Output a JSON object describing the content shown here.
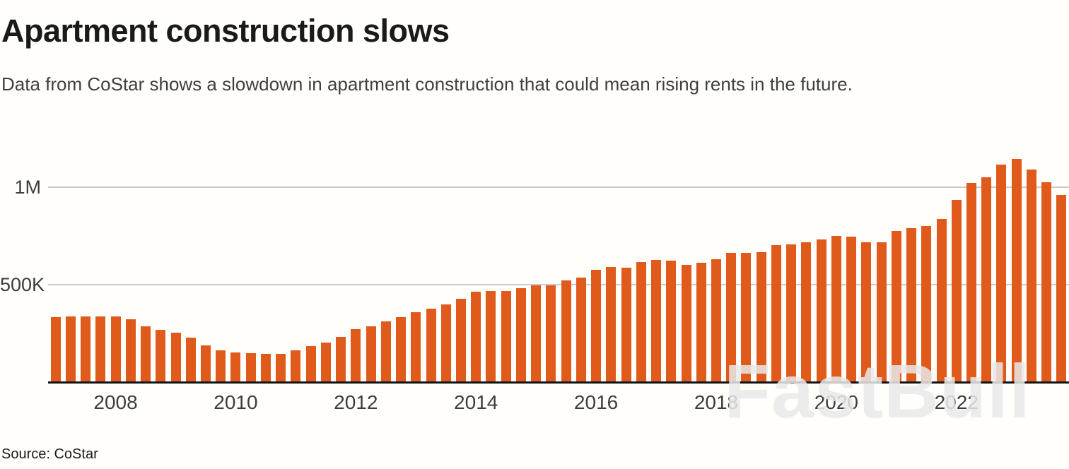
{
  "header": {
    "title": "Apartment construction slows",
    "subtitle": "Data from CoStar shows a slowdown in apartment construction that could mean rising rents in the future."
  },
  "watermark": "FastBull",
  "source_line": "Source: CoStar",
  "colors": {
    "bar": "#E05A1C",
    "gridline": "#cbcbcb",
    "axis_line": "#151515",
    "title_text": "#1a1a1a",
    "subtitle_text": "#3f3f3f",
    "tick_text": "#3d3d3d",
    "watermark_text": "rgba(233,233,233,0.85)",
    "background": "#fffefb"
  },
  "chart_data": {
    "type": "bar",
    "title": "Apartment construction slows",
    "xlabel": "",
    "ylabel": "",
    "grid": "horizontal-only",
    "legend": "none",
    "ylim": [
      0,
      1250000
    ],
    "y_ticks": [
      {
        "label": "500K",
        "value": 500000
      },
      {
        "label": "1M",
        "value": 1000000
      }
    ],
    "x_ticks": [
      {
        "label": "2008",
        "year": 2008
      },
      {
        "label": "2010",
        "year": 2010
      },
      {
        "label": "2012",
        "year": 2012
      },
      {
        "label": "2014",
        "year": 2014
      },
      {
        "label": "2016",
        "year": 2016
      },
      {
        "label": "2018",
        "year": 2018
      },
      {
        "label": "2020",
        "year": 2020
      },
      {
        "label": "2022",
        "year": 2022
      }
    ],
    "categories": [
      "2007 Q1",
      "2007 Q2",
      "2007 Q3",
      "2007 Q4",
      "2008 Q1",
      "2008 Q2",
      "2008 Q3",
      "2008 Q4",
      "2009 Q1",
      "2009 Q2",
      "2009 Q3",
      "2009 Q4",
      "2010 Q1",
      "2010 Q2",
      "2010 Q3",
      "2010 Q4",
      "2011 Q1",
      "2011 Q2",
      "2011 Q3",
      "2011 Q4",
      "2012 Q1",
      "2012 Q2",
      "2012 Q3",
      "2012 Q4",
      "2013 Q1",
      "2013 Q2",
      "2013 Q3",
      "2013 Q4",
      "2014 Q1",
      "2014 Q2",
      "2014 Q3",
      "2014 Q4",
      "2015 Q1",
      "2015 Q2",
      "2015 Q3",
      "2015 Q4",
      "2016 Q1",
      "2016 Q2",
      "2016 Q3",
      "2016 Q4",
      "2017 Q1",
      "2017 Q2",
      "2017 Q3",
      "2017 Q4",
      "2018 Q1",
      "2018 Q2",
      "2018 Q3",
      "2018 Q4",
      "2019 Q1",
      "2019 Q2",
      "2019 Q3",
      "2019 Q4",
      "2020 Q1",
      "2020 Q2",
      "2020 Q3",
      "2020 Q4",
      "2021 Q1",
      "2021 Q2",
      "2021 Q3",
      "2021 Q4",
      "2022 Q1",
      "2022 Q2",
      "2022 Q3",
      "2022 Q4",
      "2023 Q1",
      "2023 Q2",
      "2023 Q3",
      "2023 Q4"
    ],
    "values": [
      330000,
      335000,
      335000,
      335000,
      335000,
      320000,
      285000,
      265000,
      250000,
      225000,
      185000,
      160000,
      150000,
      145000,
      140000,
      140000,
      160000,
      180000,
      200000,
      230000,
      270000,
      285000,
      310000,
      330000,
      355000,
      375000,
      395000,
      425000,
      460000,
      465000,
      465000,
      480000,
      495000,
      495000,
      520000,
      535000,
      575000,
      590000,
      585000,
      615000,
      625000,
      620000,
      600000,
      610000,
      630000,
      660000,
      660000,
      665000,
      700000,
      705000,
      715000,
      730000,
      750000,
      745000,
      715000,
      715000,
      775000,
      790000,
      800000,
      835000,
      935000,
      1020000,
      1050000,
      1115000,
      1145000,
      1090000,
      1025000,
      960000
    ]
  }
}
